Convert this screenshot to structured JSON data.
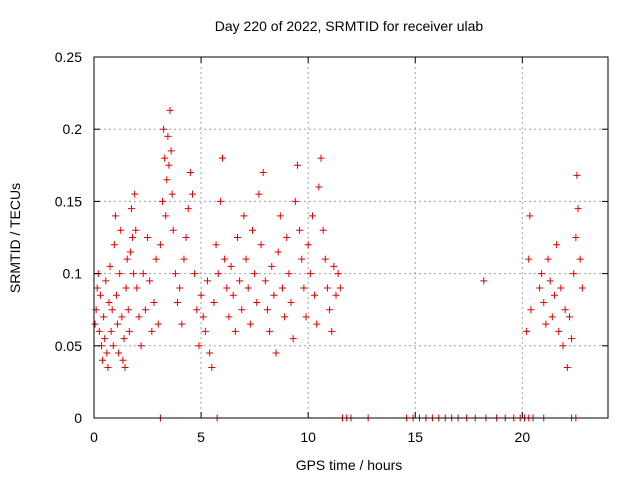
{
  "chart_data": {
    "type": "scatter",
    "title": "Day 220 of 2022, SRMTID for receiver ulab",
    "xlabel": "GPS time / hours",
    "ylabel": "SRMTID / TECUs",
    "xlim": [
      0,
      24
    ],
    "ylim": [
      0,
      0.25
    ],
    "xticks": [
      0,
      5,
      10,
      15,
      20
    ],
    "xtick_labels": [
      "0",
      "5",
      "10",
      "15",
      "20"
    ],
    "yticks": [
      0,
      0.05,
      0.1,
      0.15,
      0.2,
      0.25
    ],
    "ytick_labels": [
      "0",
      "0.05",
      "0.1",
      "0.15",
      "0.2",
      "0.25"
    ],
    "grid": true,
    "marker": "+",
    "series": [
      {
        "name": "SRMTID",
        "color": "#e00000",
        "points": [
          [
            0.05,
            0.065
          ],
          [
            0.1,
            0.075
          ],
          [
            0.15,
            0.09
          ],
          [
            0.2,
            0.1
          ],
          [
            0.25,
            0.06
          ],
          [
            0.3,
            0.085
          ],
          [
            0.35,
            0.05
          ],
          [
            0.4,
            0.04
          ],
          [
            0.45,
            0.07
          ],
          [
            0.5,
            0.055
          ],
          [
            0.55,
            0.095
          ],
          [
            0.6,
            0.045
          ],
          [
            0.65,
            0.035
          ],
          [
            0.7,
            0.08
          ],
          [
            0.75,
            0.105
          ],
          [
            0.8,
            0.06
          ],
          [
            0.85,
            0.075
          ],
          [
            0.9,
            0.05
          ],
          [
            0.95,
            0.12
          ],
          [
            1.0,
            0.14
          ],
          [
            1.05,
            0.085
          ],
          [
            1.1,
            0.065
          ],
          [
            1.15,
            0.045
          ],
          [
            1.2,
            0.1
          ],
          [
            1.25,
            0.13
          ],
          [
            1.3,
            0.07
          ],
          [
            1.35,
            0.04
          ],
          [
            1.4,
            0.055
          ],
          [
            1.45,
            0.035
          ],
          [
            1.5,
            0.09
          ],
          [
            1.55,
            0.11
          ],
          [
            1.6,
            0.075
          ],
          [
            1.65,
            0.06
          ],
          [
            1.7,
            0.115
          ],
          [
            1.75,
            0.145
          ],
          [
            1.8,
            0.125
          ],
          [
            1.85,
            0.1
          ],
          [
            1.9,
            0.155
          ],
          [
            1.95,
            0.13
          ],
          [
            2.0,
            0.09
          ],
          [
            2.1,
            0.07
          ],
          [
            2.2,
            0.05
          ],
          [
            2.3,
            0.1
          ],
          [
            2.4,
            0.075
          ],
          [
            2.5,
            0.125
          ],
          [
            2.6,
            0.095
          ],
          [
            2.7,
            0.06
          ],
          [
            2.8,
            0.08
          ],
          [
            2.9,
            0.11
          ],
          [
            3.0,
            0.065
          ],
          [
            3.1,
            0.12
          ],
          [
            3.2,
            0.15
          ],
          [
            3.25,
            0.2
          ],
          [
            3.3,
            0.18
          ],
          [
            3.35,
            0.14
          ],
          [
            3.4,
            0.165
          ],
          [
            3.45,
            0.195
          ],
          [
            3.5,
            0.175
          ],
          [
            3.55,
            0.213
          ],
          [
            3.6,
            0.185
          ],
          [
            3.65,
            0.155
          ],
          [
            3.7,
            0.13
          ],
          [
            3.8,
            0.1
          ],
          [
            3.9,
            0.08
          ],
          [
            4.0,
            0.09
          ],
          [
            4.1,
            0.065
          ],
          [
            4.2,
            0.11
          ],
          [
            4.3,
            0.125
          ],
          [
            4.4,
            0.145
          ],
          [
            4.5,
            0.17
          ],
          [
            4.6,
            0.155
          ],
          [
            4.7,
            0.1
          ],
          [
            4.8,
            0.075
          ],
          [
            4.9,
            0.05
          ],
          [
            5.0,
            0.085
          ],
          [
            5.1,
            0.07
          ],
          [
            5.2,
            0.06
          ],
          [
            5.3,
            0.095
          ],
          [
            5.4,
            0.045
          ],
          [
            5.5,
            0.035
          ],
          [
            5.6,
            0.08
          ],
          [
            5.7,
            0.12
          ],
          [
            5.8,
            0.1
          ],
          [
            5.9,
            0.15
          ],
          [
            6.0,
            0.18
          ],
          [
            6.1,
            0.11
          ],
          [
            6.2,
            0.09
          ],
          [
            6.3,
            0.07
          ],
          [
            6.4,
            0.105
          ],
          [
            6.5,
            0.085
          ],
          [
            6.6,
            0.06
          ],
          [
            6.7,
            0.125
          ],
          [
            6.8,
            0.095
          ],
          [
            6.9,
            0.075
          ],
          [
            7.0,
            0.14
          ],
          [
            7.1,
            0.11
          ],
          [
            7.2,
            0.09
          ],
          [
            7.3,
            0.065
          ],
          [
            7.4,
            0.13
          ],
          [
            7.5,
            0.1
          ],
          [
            7.6,
            0.08
          ],
          [
            7.7,
            0.155
          ],
          [
            7.8,
            0.12
          ],
          [
            7.9,
            0.17
          ],
          [
            8.0,
            0.095
          ],
          [
            8.1,
            0.075
          ],
          [
            8.2,
            0.06
          ],
          [
            8.3,
            0.105
          ],
          [
            8.4,
            0.085
          ],
          [
            8.5,
            0.045
          ],
          [
            8.6,
            0.115
          ],
          [
            8.7,
            0.14
          ],
          [
            8.8,
            0.09
          ],
          [
            8.9,
            0.07
          ],
          [
            9.0,
            0.125
          ],
          [
            9.1,
            0.1
          ],
          [
            9.2,
            0.08
          ],
          [
            9.3,
            0.055
          ],
          [
            9.4,
            0.15
          ],
          [
            9.5,
            0.175
          ],
          [
            9.6,
            0.13
          ],
          [
            9.7,
            0.11
          ],
          [
            9.8,
            0.09
          ],
          [
            9.9,
            0.07
          ],
          [
            10.0,
            0.12
          ],
          [
            10.1,
            0.1
          ],
          [
            10.2,
            0.14
          ],
          [
            10.3,
            0.085
          ],
          [
            10.4,
            0.065
          ],
          [
            10.5,
            0.16
          ],
          [
            10.6,
            0.18
          ],
          [
            10.7,
            0.13
          ],
          [
            10.8,
            0.11
          ],
          [
            10.9,
            0.09
          ],
          [
            11.0,
            0.075
          ],
          [
            11.1,
            0.06
          ],
          [
            11.2,
            0.105
          ],
          [
            11.3,
            0.085
          ],
          [
            11.4,
            0.1
          ],
          [
            11.5,
            0.09
          ],
          [
            18.2,
            0.095
          ],
          [
            20.2,
            0.06
          ],
          [
            20.3,
            0.11
          ],
          [
            20.35,
            0.14
          ],
          [
            20.4,
            0.075
          ],
          [
            20.8,
            0.09
          ],
          [
            20.9,
            0.1
          ],
          [
            21.0,
            0.08
          ],
          [
            21.1,
            0.065
          ],
          [
            21.2,
            0.11
          ],
          [
            21.3,
            0.095
          ],
          [
            21.4,
            0.07
          ],
          [
            21.5,
            0.085
          ],
          [
            21.6,
            0.12
          ],
          [
            21.7,
            0.06
          ],
          [
            21.8,
            0.09
          ],
          [
            21.9,
            0.05
          ],
          [
            22.0,
            0.075
          ],
          [
            22.1,
            0.035
          ],
          [
            22.2,
            0.07
          ],
          [
            22.3,
            0.055
          ],
          [
            22.4,
            0.1
          ],
          [
            22.5,
            0.125
          ],
          [
            22.55,
            0.168
          ],
          [
            22.6,
            0.145
          ],
          [
            22.7,
            0.11
          ],
          [
            22.8,
            0.09
          ],
          [
            3.1,
            0.0
          ],
          [
            5.75,
            0.0
          ],
          [
            11.6,
            0.0
          ],
          [
            11.8,
            0.0
          ],
          [
            12.0,
            0.0
          ],
          [
            12.8,
            0.0
          ],
          [
            14.6,
            0.0
          ],
          [
            14.9,
            0.0
          ],
          [
            15.2,
            0.0
          ],
          [
            15.5,
            0.0
          ],
          [
            15.8,
            0.0
          ],
          [
            16.1,
            0.0
          ],
          [
            16.4,
            0.0
          ],
          [
            16.7,
            0.0
          ],
          [
            17.0,
            0.0
          ],
          [
            17.4,
            0.0
          ],
          [
            17.8,
            0.0
          ],
          [
            18.3,
            0.0
          ],
          [
            18.8,
            0.0
          ],
          [
            19.2,
            0.0
          ],
          [
            19.6,
            0.0
          ],
          [
            19.9,
            0.0
          ],
          [
            20.1,
            0.0
          ],
          [
            20.3,
            0.0
          ],
          [
            20.5,
            0.0
          ],
          [
            21.0,
            0.0
          ],
          [
            22.3,
            0.0
          ],
          [
            22.5,
            0.0
          ]
        ]
      }
    ]
  }
}
